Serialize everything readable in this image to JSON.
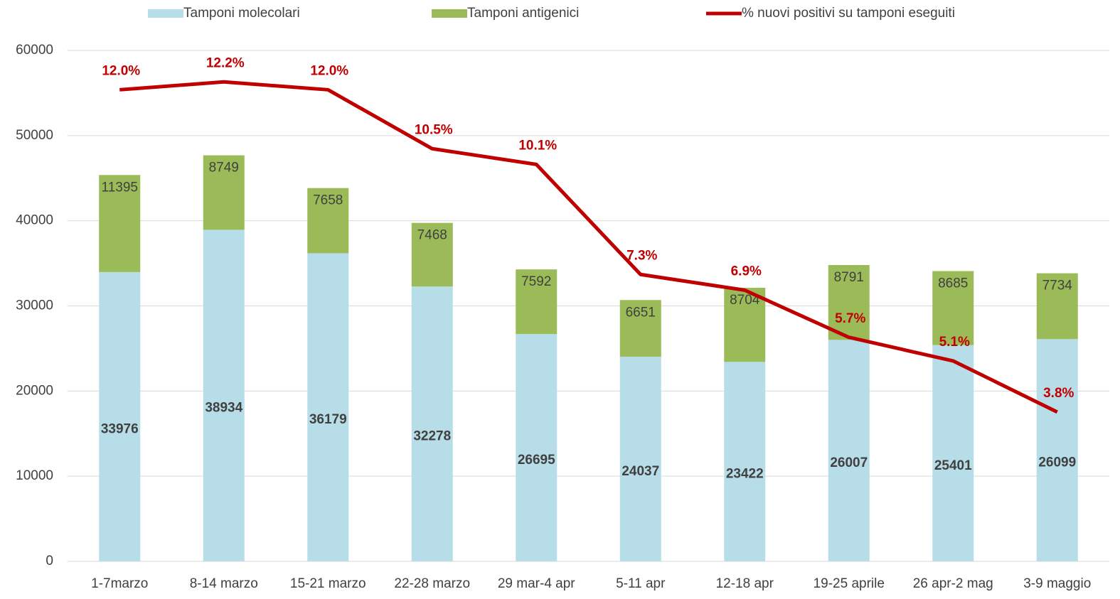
{
  "chart_data": {
    "type": "bar",
    "categories": [
      "1-7marzo",
      "8-14 marzo",
      "15-21 marzo",
      "22-28 marzo",
      "29 mar-4 apr",
      "5-11 apr",
      "12-18 apr",
      "19-25 aprile",
      "26 apr-2 mag",
      "3-9 maggio"
    ],
    "series": [
      {
        "name": "Tamponi molecolari",
        "color": "#b7dde8",
        "type": "bar",
        "values": [
          33976,
          38934,
          36179,
          32278,
          26695,
          24037,
          23422,
          26007,
          25401,
          26099
        ]
      },
      {
        "name": "Tamponi antigenici",
        "color": "#9bbb59",
        "type": "bar",
        "values": [
          11395,
          8749,
          7658,
          7468,
          7592,
          6651,
          8704,
          8791,
          8685,
          7734
        ]
      },
      {
        "name": "% nuovi positivi su tamponi eseguiti",
        "color": "#c00000",
        "type": "line",
        "axis": "y2",
        "values": [
          12.0,
          12.2,
          12.0,
          10.5,
          10.1,
          7.3,
          6.9,
          5.7,
          5.1,
          3.8
        ],
        "value_labels": [
          "12.0%",
          "12.2%",
          "12.0%",
          "10.5%",
          "10.1%",
          "7.3%",
          "6.9%",
          "5.7%",
          "5.1%",
          "3.8%"
        ]
      }
    ],
    "stacked": true,
    "ylim": [
      0,
      60000
    ],
    "yticks": [
      0,
      10000,
      20000,
      30000,
      40000,
      50000,
      60000
    ],
    "y2lim": [
      0,
      13
    ],
    "grid": true,
    "legend": "top"
  }
}
